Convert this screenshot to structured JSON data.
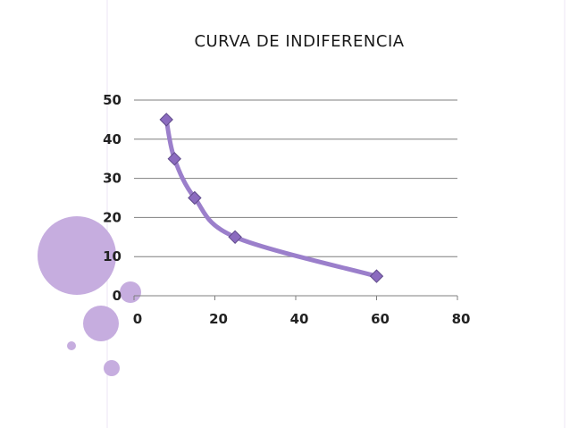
{
  "chart_data": {
    "type": "line",
    "title": "CURVA DE INDIFERENCIA",
    "x": [
      8,
      10,
      15,
      25,
      60
    ],
    "y": [
      45,
      35,
      25,
      15,
      5
    ],
    "xlim": [
      0,
      80
    ],
    "ylim": [
      0,
      50
    ],
    "xticks": [
      "0",
      "20",
      "40",
      "60",
      "80"
    ],
    "yticks": [
      "0",
      "10",
      "20",
      "30",
      "40",
      "50"
    ],
    "xlabel": "",
    "ylabel": "",
    "grid": "horizontal",
    "line_color": "#9b7fcb",
    "marker_color": "#8b6bbf",
    "marker": "diamond"
  },
  "theme": {
    "accent": "#c3a9df",
    "accent_light": "#d7c6ea",
    "border": "#e4dcef"
  }
}
